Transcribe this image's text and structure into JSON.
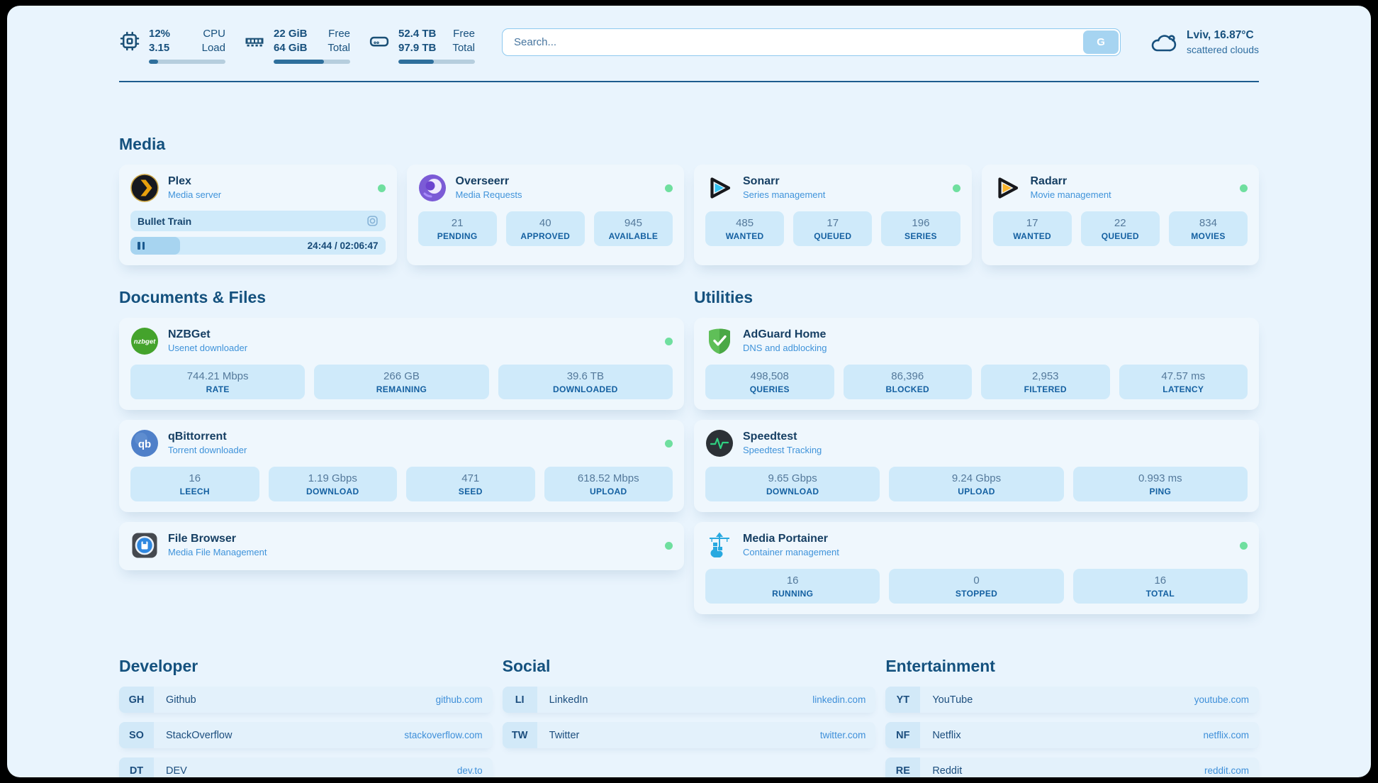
{
  "topbar": {
    "cpu": {
      "value": "12%",
      "value2": "3.15",
      "label": "CPU",
      "label2": "Load",
      "used_pct": 12
    },
    "ram": {
      "value": "22 GiB",
      "value2": "64 GiB",
      "label": "Free",
      "label2": "Total",
      "used_pct": 66
    },
    "disk": {
      "value": "52.4 TB",
      "value2": "97.9 TB",
      "label": "Free",
      "label2": "Total",
      "used_pct": 46
    },
    "search": {
      "placeholder": "Search...",
      "button_label": "G"
    },
    "weather": {
      "location": "Lviv, 16.87°C",
      "condition": "scattered clouds"
    }
  },
  "sections": {
    "media": {
      "title": "Media",
      "plex": {
        "name": "Plex",
        "desc": "Media server",
        "now_playing": "Bullet Train",
        "time": "24:44 / 02:06:47",
        "progress_pct": 19.5
      },
      "overseerr": {
        "name": "Overseerr",
        "desc": "Media Requests",
        "stats": [
          {
            "value": "21",
            "label": "PENDING"
          },
          {
            "value": "40",
            "label": "APPROVED"
          },
          {
            "value": "945",
            "label": "AVAILABLE"
          }
        ]
      },
      "sonarr": {
        "name": "Sonarr",
        "desc": "Series management",
        "stats": [
          {
            "value": "485",
            "label": "WANTED"
          },
          {
            "value": "17",
            "label": "QUEUED"
          },
          {
            "value": "196",
            "label": "SERIES"
          }
        ]
      },
      "radarr": {
        "name": "Radarr",
        "desc": "Movie management",
        "stats": [
          {
            "value": "17",
            "label": "WANTED"
          },
          {
            "value": "22",
            "label": "QUEUED"
          },
          {
            "value": "834",
            "label": "MOVIES"
          }
        ]
      }
    },
    "documents": {
      "title": "Documents & Files",
      "nzbget": {
        "name": "NZBGet",
        "desc": "Usenet downloader",
        "stats": [
          {
            "value": "744.21 Mbps",
            "label": "RATE"
          },
          {
            "value": "266 GB",
            "label": "REMAINING"
          },
          {
            "value": "39.6 TB",
            "label": "DOWNLOADED"
          }
        ]
      },
      "qbittorrent": {
        "name": "qBittorrent",
        "desc": "Torrent downloader",
        "stats": [
          {
            "value": "16",
            "label": "LEECH"
          },
          {
            "value": "1.19 Gbps",
            "label": "DOWNLOAD"
          },
          {
            "value": "471",
            "label": "SEED"
          },
          {
            "value": "618.52 Mbps",
            "label": "UPLOAD"
          }
        ]
      },
      "filebrowser": {
        "name": "File Browser",
        "desc": "Media File Management"
      }
    },
    "utilities": {
      "title": "Utilities",
      "adguard": {
        "name": "AdGuard Home",
        "desc": "DNS and adblocking",
        "stats": [
          {
            "value": "498,508",
            "label": "QUERIES"
          },
          {
            "value": "86,396",
            "label": "BLOCKED"
          },
          {
            "value": "2,953",
            "label": "FILTERED"
          },
          {
            "value": "47.57 ms",
            "label": "LATENCY"
          }
        ]
      },
      "speedtest": {
        "name": "Speedtest",
        "desc": "Speedtest Tracking",
        "stats": [
          {
            "value": "9.65 Gbps",
            "label": "DOWNLOAD"
          },
          {
            "value": "9.24 Gbps",
            "label": "UPLOAD"
          },
          {
            "value": "0.993 ms",
            "label": "PING"
          }
        ]
      },
      "portainer": {
        "name": "Media Portainer",
        "desc": "Container management",
        "stats": [
          {
            "value": "16",
            "label": "RUNNING"
          },
          {
            "value": "0",
            "label": "STOPPED"
          },
          {
            "value": "16",
            "label": "TOTAL"
          }
        ]
      }
    },
    "developer": {
      "title": "Developer",
      "links": [
        {
          "abbr": "GH",
          "name": "Github",
          "domain": "github.com"
        },
        {
          "abbr": "SO",
          "name": "StackOverflow",
          "domain": "stackoverflow.com"
        },
        {
          "abbr": "DT",
          "name": "DEV",
          "domain": "dev.to"
        }
      ]
    },
    "social": {
      "title": "Social",
      "links": [
        {
          "abbr": "LI",
          "name": "LinkedIn",
          "domain": "linkedin.com"
        },
        {
          "abbr": "TW",
          "name": "Twitter",
          "domain": "twitter.com"
        }
      ]
    },
    "entertainment": {
      "title": "Entertainment",
      "links": [
        {
          "abbr": "YT",
          "name": "YouTube",
          "domain": "youtube.com"
        },
        {
          "abbr": "NF",
          "name": "Netflix",
          "domain": "netflix.com"
        },
        {
          "abbr": "RE",
          "name": "Reddit",
          "domain": "reddit.com"
        }
      ]
    }
  },
  "colors": {
    "accent": "#17507d",
    "subtitle": "#3f93da",
    "status_online": "#6fdf9f",
    "stat_bg": "#cfeafa",
    "link_blue": "#3e8fd9",
    "bar_fill": "#2e6f9c"
  }
}
